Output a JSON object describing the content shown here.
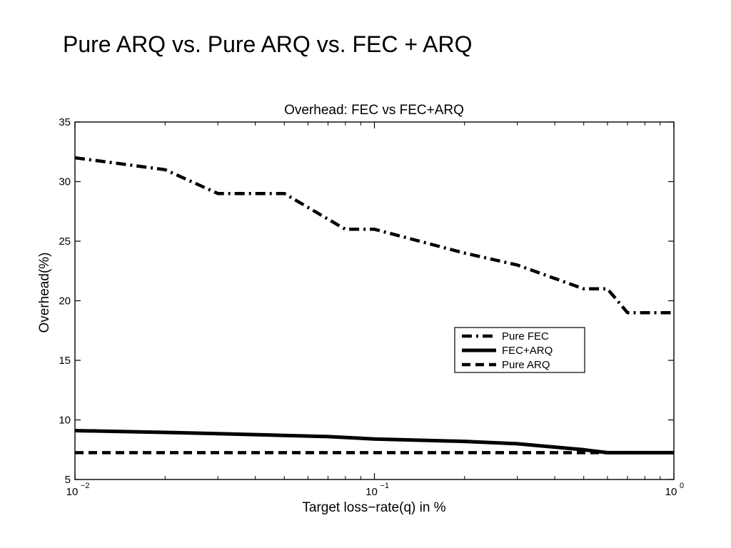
{
  "slide": {
    "title": "Pure ARQ vs. Pure ARQ vs. FEC + ARQ"
  },
  "chart_data": {
    "type": "line",
    "title": "Overhead: FEC vs FEC+ARQ",
    "xlabel": "Target loss−rate(q) in %",
    "ylabel": "Overhead(%)",
    "xscale": "log",
    "xlim": [
      0.01,
      1
    ],
    "ylim": [
      5,
      35
    ],
    "yticks": [
      5,
      10,
      15,
      20,
      25,
      30,
      35
    ],
    "xticks": [
      {
        "value": 0.01,
        "base": "10",
        "exp": "−2"
      },
      {
        "value": 0.1,
        "base": "10",
        "exp": "−1"
      },
      {
        "value": 1,
        "base": "10",
        "exp": "0"
      }
    ],
    "grid": false,
    "legend_position": "right-center",
    "series": [
      {
        "name": "Pure FEC",
        "style": "dash-dot",
        "x": [
          0.01,
          0.02,
          0.03,
          0.05,
          0.08,
          0.1,
          0.2,
          0.3,
          0.5,
          0.6,
          0.7,
          1.0
        ],
        "y": [
          32,
          31,
          29,
          29,
          26,
          26,
          24,
          23,
          21,
          21,
          19,
          19
        ]
      },
      {
        "name": "FEC+ARQ",
        "style": "solid",
        "x": [
          0.01,
          0.02,
          0.03,
          0.05,
          0.07,
          0.1,
          0.2,
          0.3,
          0.5,
          0.6,
          1.0
        ],
        "y": [
          9.1,
          8.95,
          8.85,
          8.7,
          8.6,
          8.4,
          8.2,
          8.0,
          7.5,
          7.25,
          7.25
        ]
      },
      {
        "name": "Pure ARQ",
        "style": "dashed",
        "x": [
          0.01,
          1.0
        ],
        "y": [
          7.25,
          7.25
        ]
      }
    ]
  }
}
